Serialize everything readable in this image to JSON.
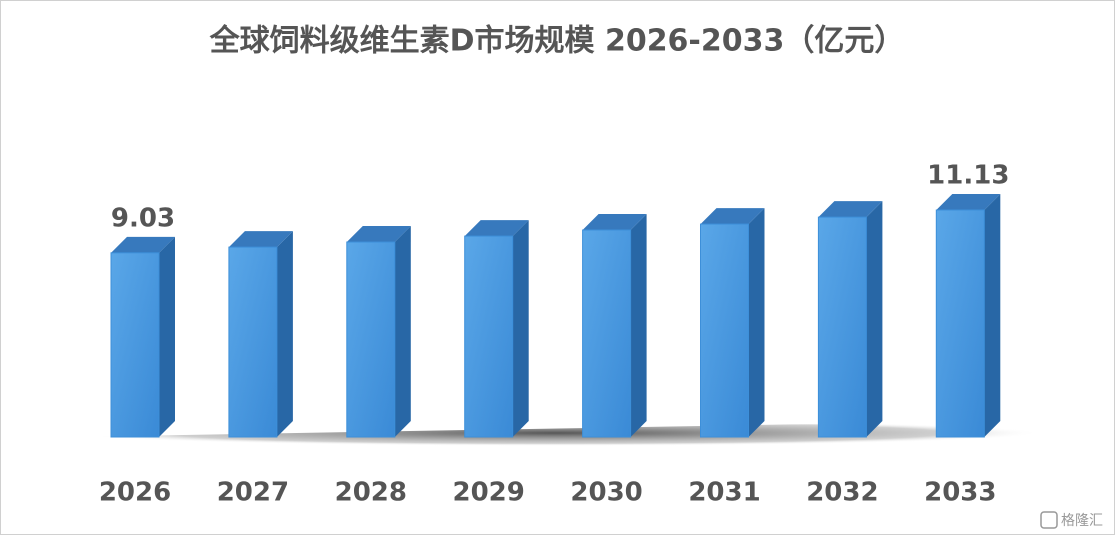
{
  "chart_data": {
    "type": "bar3d",
    "title": "全球饲料级维生素D市场规模 2026-2033（亿元）",
    "categories": [
      "2026",
      "2027",
      "2028",
      "2029",
      "2030",
      "2031",
      "2032",
      "2033"
    ],
    "values": [
      9.03,
      9.31,
      9.56,
      9.85,
      10.15,
      10.44,
      10.78,
      11.13
    ],
    "value_labels": [
      "9.03",
      null,
      null,
      null,
      null,
      null,
      null,
      "11.13"
    ],
    "color": "#3d8fd9",
    "watermark": "格隆汇"
  }
}
